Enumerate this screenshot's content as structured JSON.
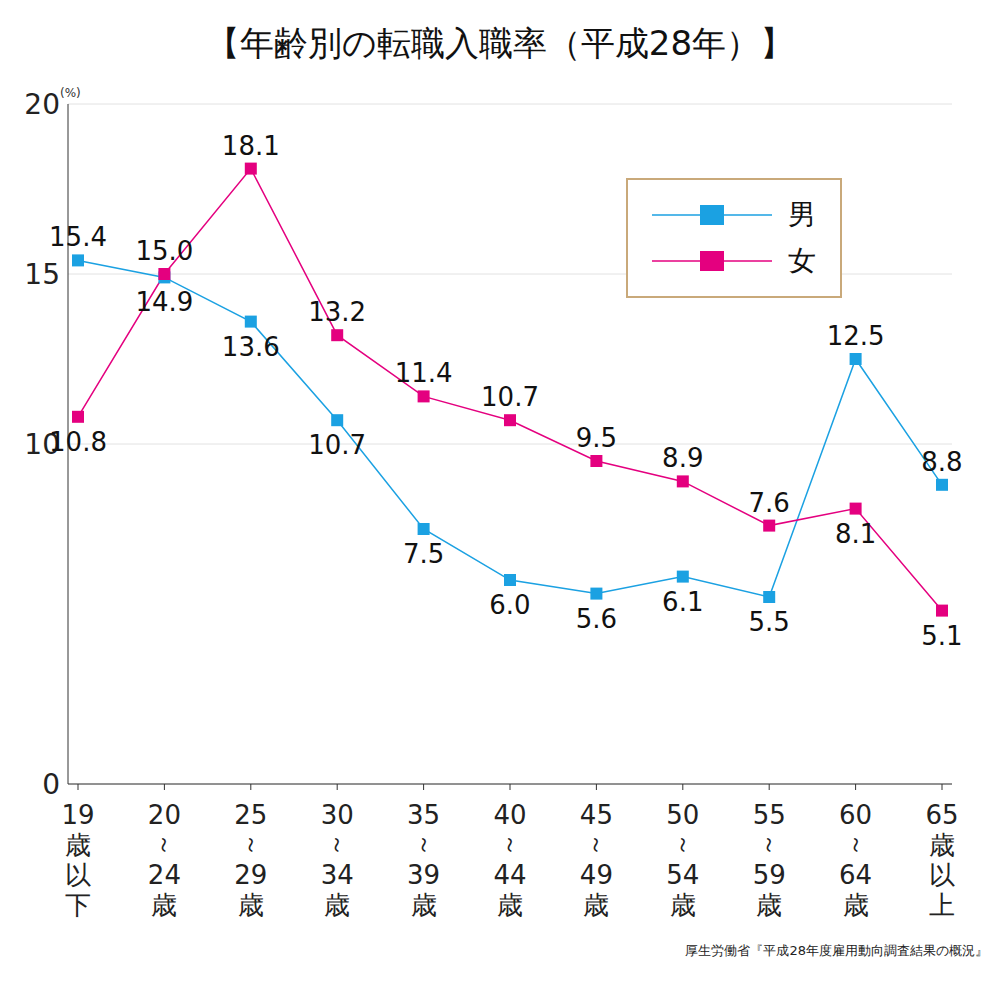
{
  "chart_data": {
    "type": "line",
    "title": "【年齢別の転職入職率（平成28年）】",
    "y_label": "(%)",
    "source": "厚生労働省『平成28年度雇用動向調査結果の概況』",
    "categories": [
      "19歳以下",
      "20～24歳",
      "25～29歳",
      "30～34歳",
      "35～39歳",
      "40～44歳",
      "45～49歳",
      "50～54歳",
      "55～59歳",
      "60～64歳",
      "65歳以上"
    ],
    "series": [
      {
        "name": "男",
        "color": "#1ba1e2",
        "marker": "square",
        "values": [
          15.4,
          14.9,
          13.6,
          10.7,
          7.5,
          6.0,
          5.6,
          6.1,
          5.5,
          12.5,
          8.8
        ],
        "value_labels": [
          "15.4",
          "14.9",
          "13.6",
          "10.7",
          "7.5",
          "6.0",
          "5.6",
          "6.1",
          "5.5",
          "12.5",
          "8.8"
        ]
      },
      {
        "name": "女",
        "color": "#e4007f",
        "marker": "square",
        "values": [
          10.8,
          15.0,
          18.1,
          13.2,
          11.4,
          10.7,
          9.5,
          8.9,
          7.6,
          8.1,
          5.1
        ],
        "value_labels": [
          "10.8",
          "15.0",
          "18.1",
          "13.2",
          "11.4",
          "10.7",
          "9.5",
          "8.9",
          "7.6",
          "8.1",
          "5.1"
        ]
      }
    ],
    "ylim": [
      0,
      20
    ],
    "yticks": [
      0,
      10,
      15,
      20
    ],
    "grid": true,
    "legend": "top-right",
    "data_labels": true
  }
}
